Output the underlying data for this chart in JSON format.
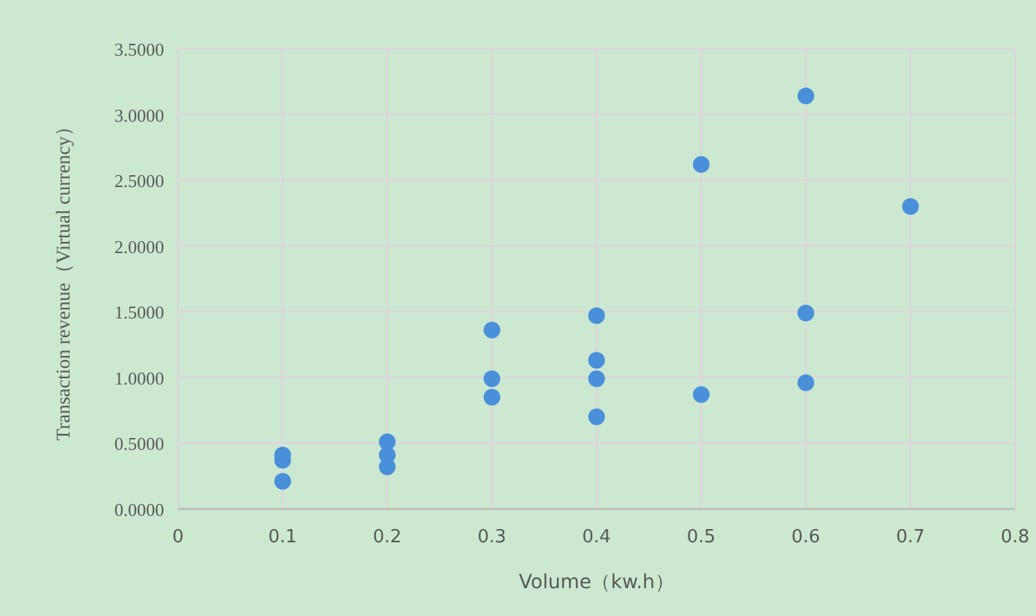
{
  "chart_data": {
    "type": "scatter",
    "xlabel": "Volume（kw.h）",
    "ylabel": "Transaction revenue（Virtual currency）",
    "x": [
      0.1,
      0.1,
      0.1,
      0.2,
      0.2,
      0.2,
      0.3,
      0.3,
      0.3,
      0.4,
      0.4,
      0.4,
      0.4,
      0.5,
      0.5,
      0.6,
      0.6,
      0.6,
      0.7
    ],
    "series": [
      {
        "color": "#4a90d9",
        "values": [
          0.41,
          0.37,
          0.21,
          0.51,
          0.41,
          0.32,
          1.36,
          0.99,
          0.85,
          1.47,
          1.13,
          0.99,
          0.7,
          2.62,
          0.87,
          3.14,
          1.49,
          0.96,
          2.3
        ]
      }
    ],
    "xlim": [
      0,
      0.8
    ],
    "xticks": [
      0,
      0.1,
      0.2,
      0.3,
      0.4,
      0.5,
      0.6,
      0.7,
      0.8
    ],
    "ylim": [
      0,
      3.5
    ],
    "yticks": [
      {
        "value": 0,
        "label": "0.0000"
      },
      {
        "value": 0.5,
        "label": "0.5000"
      },
      {
        "value": 1,
        "label": "1.0000"
      },
      {
        "value": 1.5,
        "label": "1.5000"
      },
      {
        "value": 2,
        "label": "2.0000"
      },
      {
        "value": 2.5,
        "label": "2.5000"
      },
      {
        "value": 3,
        "label": "3.0000"
      },
      {
        "value": 3.5,
        "label": "3.5000"
      }
    ],
    "grid": true,
    "marker": "circle"
  }
}
